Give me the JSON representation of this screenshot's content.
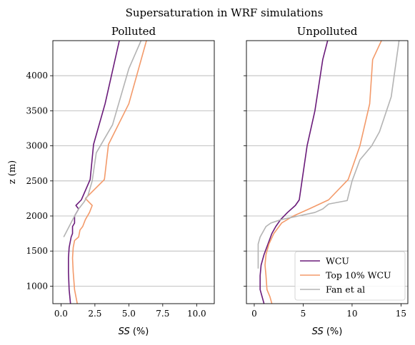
{
  "suptitle": "Supersaturation in WRF simulations",
  "chart_data": [
    {
      "type": "line",
      "title": "Polluted",
      "xlabel": "SS (%)",
      "ylabel": "z (m)",
      "xlim": [
        -0.6,
        11.3
      ],
      "ylim": [
        750,
        4500
      ],
      "xticks": [
        "0.0",
        "2.5",
        "5.0",
        "7.5",
        "10.0"
      ],
      "xtick_values": [
        0,
        2.5,
        5,
        7.5,
        10
      ],
      "yticks": [
        "1000",
        "1500",
        "2000",
        "2500",
        "3000",
        "3500",
        "4000"
      ],
      "ytick_values": [
        1000,
        1500,
        2000,
        2500,
        3000,
        3500,
        4000
      ],
      "grid": "y",
      "series": [
        {
          "name": "WCU",
          "color": "#6a1b7a",
          "x": [
            0.7,
            0.6,
            0.55,
            0.55,
            0.6,
            0.75,
            0.85,
            0.85,
            1.0,
            1.0,
            1.3,
            1.1,
            1.5,
            2.15,
            2.4,
            3.25,
            4.3
          ],
          "y": [
            750,
            950,
            1200,
            1400,
            1550,
            1700,
            1750,
            1850,
            1900,
            2000,
            2100,
            2150,
            2230,
            2520,
            3020,
            3600,
            4500
          ]
        },
        {
          "name": "Top 10% WCU",
          "color": "#f39a6a",
          "x": [
            1.2,
            1.0,
            0.9,
            0.85,
            0.9,
            1.0,
            1.3,
            1.4,
            1.6,
            1.8,
            2.1,
            2.3,
            1.8,
            3.2,
            3.5,
            5.0,
            6.3
          ],
          "y": [
            750,
            950,
            1200,
            1400,
            1550,
            1650,
            1700,
            1800,
            1850,
            1950,
            2050,
            2150,
            2250,
            2520,
            3020,
            3600,
            4500
          ]
        },
        {
          "name": "Fan et al",
          "color": "#b3b3b3",
          "x": [
            0.2,
            0.6,
            1.0,
            1.3,
            1.7,
            2.0,
            2.3,
            2.6,
            3.8,
            5.0,
            5.9
          ],
          "y": [
            1700,
            1850,
            2000,
            2100,
            2200,
            2300,
            2500,
            2900,
            3300,
            4100,
            4500
          ]
        }
      ]
    },
    {
      "type": "line",
      "title": "Unpolluted",
      "xlabel": "SS (%)",
      "ylabel": "",
      "xlim": [
        -0.8,
        15.7
      ],
      "ylim": [
        750,
        4500
      ],
      "xticks": [
        "0",
        "5",
        "10",
        "15"
      ],
      "xtick_values": [
        0,
        5,
        10,
        15
      ],
      "yticks": [],
      "ytick_values": [
        1000,
        1500,
        2000,
        2500,
        3000,
        3500,
        4000
      ],
      "grid": "y",
      "series": [
        {
          "name": "WCU",
          "color": "#6a1b7a",
          "x": [
            1.0,
            0.6,
            0.6,
            0.7,
            1.0,
            1.4,
            1.8,
            2.2,
            2.7,
            3.4,
            4.2,
            4.6,
            5.4,
            6.2,
            7.0,
            7.5
          ],
          "y": [
            750,
            950,
            1150,
            1300,
            1450,
            1600,
            1750,
            1850,
            1950,
            2050,
            2150,
            2230,
            3000,
            3500,
            4230,
            4500
          ]
        },
        {
          "name": "Top 10% WCU",
          "color": "#f39a6a",
          "x": [
            1.8,
            1.6,
            1.3,
            1.2,
            1.1,
            1.2,
            1.5,
            2.0,
            2.8,
            4.0,
            5.6,
            7.6,
            9.6,
            10.8,
            11.8,
            12.1,
            13.0
          ],
          "y": [
            750,
            850,
            950,
            1150,
            1300,
            1450,
            1600,
            1750,
            1900,
            2000,
            2100,
            2230,
            2520,
            3000,
            3600,
            4230,
            4500
          ]
        },
        {
          "name": "Fan et al",
          "color": "#b3b3b3",
          "x": [
            0.4,
            0.4,
            0.6,
            1.2,
            1.7,
            2.8,
            4.5,
            6.2,
            7.0,
            7.6,
            9.5,
            10.0,
            10.8,
            12.0,
            12.8,
            14.0,
            14.8
          ],
          "y": [
            1250,
            1600,
            1700,
            1850,
            1900,
            1950,
            2000,
            2050,
            2100,
            2170,
            2220,
            2500,
            2800,
            3000,
            3200,
            3700,
            4500
          ]
        }
      ],
      "legend": {
        "position": "lower right",
        "entries": [
          "WCU",
          "Top 10% WCU",
          "Fan et al"
        ]
      }
    }
  ]
}
